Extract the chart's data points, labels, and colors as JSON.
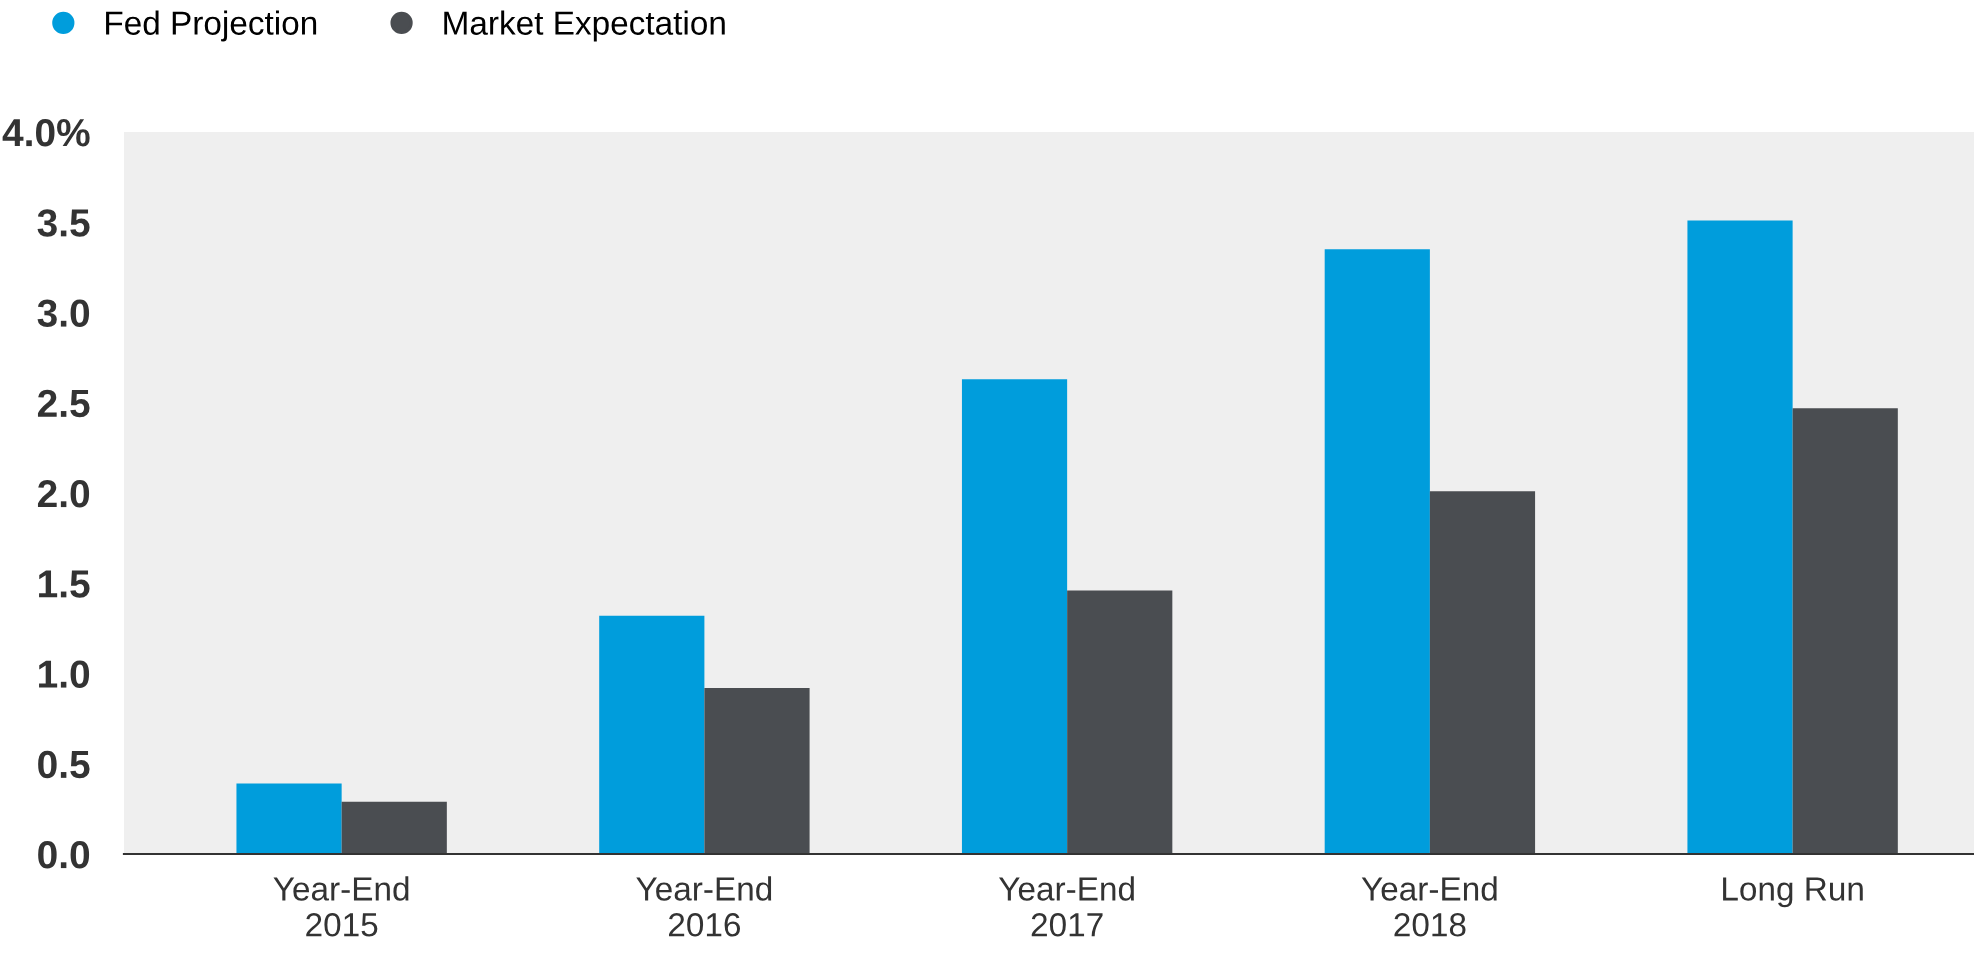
{
  "chart_data": {
    "type": "bar",
    "categories": [
      "Year-End\n2015",
      "Year-End\n2016",
      "Year-End\n2017",
      "Year-End\n2018",
      "Long Run"
    ],
    "series": [
      {
        "name": "Fed Projection",
        "color": "#009ddc",
        "values": [
          0.39,
          1.32,
          2.63,
          3.35,
          3.51
        ]
      },
      {
        "name": "Market Expectation",
        "color": "#4a4d51",
        "values": [
          0.29,
          0.92,
          1.46,
          2.01,
          2.47
        ]
      }
    ],
    "ylim": [
      0,
      4.0
    ],
    "yticks": [
      {
        "value": 0,
        "label": "0.0"
      },
      0.5,
      {
        "value": 1,
        "label": "1.0"
      },
      1.5,
      {
        "value": 2,
        "label": "2.0"
      },
      2.5,
      {
        "value": 3,
        "label": "3.0"
      },
      3.5,
      {
        "value": 4,
        "label": "4.0%"
      }
    ],
    "grid": false,
    "legend": "top left"
  }
}
